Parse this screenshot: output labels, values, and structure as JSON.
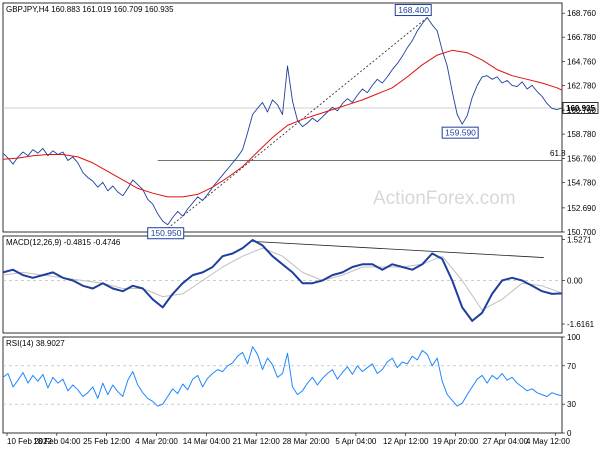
{
  "chart_data": [
    {
      "type": "line",
      "panel": "price",
      "header": "GBPJPY,H4  160.883 161.019 160.709 160.935",
      "last_price": 160.935,
      "last_price_label": "160.935",
      "ylim": [
        150.7,
        169.6
      ],
      "y_ticks": [
        "168.760",
        "166.780",
        "164.760",
        "162.780",
        "160.760",
        "158.780",
        "156.760",
        "154.780",
        "152.690",
        "150.700"
      ],
      "x_ticks": [
        "10 Feb 2022",
        "18 Feb 04:00",
        "25 Feb 12:00",
        "4 Mar 20:00",
        "14 Mar 04:00",
        "21 Mar 12:00",
        "28 Mar 20:00",
        "5 Apr 04:00",
        "12 Apr 12:00",
        "19 Apr 20:00",
        "27 Apr 04:00",
        "4 May 12:00"
      ],
      "watermark": "ActionForex.com",
      "series": [
        {
          "role": "price",
          "color": "#1f3f9f",
          "x": [
            0,
            3,
            6,
            9,
            12,
            15,
            18,
            21,
            24,
            27,
            30,
            33,
            36,
            39,
            42,
            45,
            48,
            51,
            54,
            57,
            60,
            63,
            66,
            69,
            72,
            75,
            78,
            81,
            84,
            87,
            90,
            93,
            96,
            99,
            102,
            105,
            108,
            111,
            114,
            117,
            120,
            123,
            126,
            129,
            132,
            135,
            138,
            141,
            144,
            147,
            150,
            153,
            156,
            159,
            162,
            165,
            168,
            171,
            174,
            177,
            180,
            183,
            186,
            189,
            192,
            195,
            198,
            201,
            204,
            207,
            210,
            213,
            216,
            219,
            222,
            225,
            228,
            231,
            234,
            237,
            240,
            243,
            246,
            249,
            252,
            255,
            258,
            261,
            264,
            267,
            270,
            273,
            276,
            279,
            282,
            285,
            288,
            291,
            294,
            297,
            300,
            303,
            306,
            309,
            312,
            315,
            318,
            321,
            324,
            327,
            330,
            333,
            336
          ],
          "values": [
            157.2,
            156.8,
            156.3,
            156.9,
            157.3,
            157.0,
            157.5,
            157.2,
            157.6,
            157.0,
            157.4,
            157.1,
            157.3,
            156.6,
            156.9,
            156.4,
            155.6,
            155.2,
            154.9,
            154.4,
            154.8,
            154.1,
            154.5,
            154.0,
            153.7,
            154.3,
            155.0,
            154.6,
            154.2,
            153.4,
            153.0,
            152.2,
            151.6,
            151.3,
            151.9,
            152.4,
            152.0,
            152.6,
            153.1,
            153.6,
            153.3,
            153.8,
            154.4,
            154.9,
            155.4,
            155.9,
            156.4,
            156.9,
            157.5,
            158.9,
            160.4,
            160.9,
            161.4,
            160.6,
            161.6,
            161.2,
            160.4,
            164.4,
            161.5,
            159.9,
            159.4,
            159.7,
            160.1,
            159.8,
            160.2,
            160.6,
            161.0,
            160.7,
            161.3,
            161.7,
            161.4,
            162.0,
            162.5,
            162.2,
            162.8,
            163.3,
            163.0,
            163.5,
            164.1,
            164.6,
            165.2,
            165.9,
            166.5,
            167.3,
            167.9,
            168.4,
            167.8,
            167.3,
            165.7,
            164.4,
            162.3,
            160.4,
            159.6,
            160.3,
            161.8,
            162.8,
            163.5,
            163.6,
            163.3,
            163.5,
            163.0,
            163.2,
            162.8,
            162.7,
            163.1,
            162.5,
            162.8,
            162.3,
            161.9,
            161.3,
            160.9,
            160.8,
            160.935
          ]
        },
        {
          "role": "moving average",
          "color": "#dd1111",
          "x": [
            0,
            9,
            18,
            27,
            36,
            45,
            54,
            63,
            72,
            81,
            90,
            99,
            108,
            117,
            126,
            135,
            144,
            153,
            162,
            171,
            180,
            189,
            198,
            207,
            216,
            225,
            234,
            243,
            252,
            261,
            270,
            279,
            288,
            297,
            306,
            315,
            324,
            333,
            336
          ],
          "values": [
            156.7,
            156.8,
            157.0,
            157.1,
            157.1,
            156.9,
            156.4,
            155.7,
            155.0,
            154.3,
            153.9,
            153.6,
            153.6,
            153.8,
            154.4,
            155.2,
            156.1,
            157.3,
            158.5,
            159.5,
            160.0,
            160.4,
            160.8,
            161.2,
            161.6,
            162.1,
            162.6,
            163.5,
            164.5,
            165.3,
            165.7,
            165.5,
            164.9,
            164.1,
            163.6,
            163.3,
            163.0,
            162.6,
            162.4
          ]
        }
      ],
      "annotations": [
        {
          "text": "168.400",
          "x": 255,
          "y": 168.4,
          "position": "above"
        },
        {
          "text": "150.950",
          "x": 99,
          "y": 151.3,
          "position": "below"
        },
        {
          "text": "159.590",
          "x": 276,
          "y": 159.6,
          "position": "below"
        },
        {
          "text": "61.8",
          "x": 336,
          "y": 156.8,
          "position": "right"
        }
      ],
      "horizontal_lines": [
        {
          "y": 160.935,
          "color": "#c0c0c0"
        },
        {
          "y": 156.6,
          "x_from": 93,
          "color": "#444444"
        }
      ],
      "trend_lines": [
        {
          "x": [
            99,
            255
          ],
          "values": [
            151.0,
            168.4
          ],
          "color": "#222222",
          "style": "dotted"
        }
      ]
    },
    {
      "type": "line",
      "panel": "macd",
      "header": "MACD(12,26,9) -0.4815 -0.4746",
      "ylim": [
        -1.95,
        1.65
      ],
      "y_ticks": [
        "1.5271",
        "0.00",
        "-1.6161"
      ],
      "series": [
        {
          "role": "macd",
          "color": "#1f3f9f",
          "x": [
            0,
            6,
            12,
            18,
            24,
            30,
            36,
            42,
            48,
            54,
            60,
            66,
            72,
            78,
            84,
            90,
            96,
            102,
            108,
            114,
            120,
            126,
            132,
            138,
            144,
            150,
            156,
            162,
            168,
            174,
            180,
            186,
            192,
            198,
            204,
            210,
            216,
            222,
            228,
            234,
            240,
            246,
            252,
            258,
            264,
            270,
            276,
            282,
            288,
            294,
            300,
            306,
            312,
            318,
            324,
            330,
            336
          ],
          "values": [
            0.3,
            0.4,
            0.2,
            0.1,
            0.2,
            0.3,
            0.1,
            0.0,
            -0.2,
            -0.3,
            -0.1,
            -0.3,
            -0.4,
            -0.2,
            -0.3,
            -0.7,
            -1.0,
            -0.5,
            -0.1,
            0.2,
            0.3,
            0.5,
            0.9,
            1.0,
            1.2,
            1.5,
            1.3,
            0.9,
            0.6,
            0.3,
            -0.1,
            -0.1,
            0.0,
            0.2,
            0.3,
            0.5,
            0.6,
            0.6,
            0.4,
            0.6,
            0.5,
            0.4,
            0.6,
            1.0,
            0.8,
            0.0,
            -1.0,
            -1.5,
            -1.2,
            -0.5,
            0.0,
            0.1,
            0.0,
            -0.2,
            -0.4,
            -0.5,
            -0.48
          ]
        },
        {
          "role": "signal",
          "color": "#c0c0c0",
          "x": [
            0,
            12,
            24,
            36,
            48,
            60,
            72,
            84,
            96,
            108,
            120,
            132,
            144,
            156,
            168,
            180,
            192,
            204,
            216,
            228,
            240,
            252,
            264,
            276,
            288,
            300,
            312,
            324,
            336
          ],
          "values": [
            0.2,
            0.3,
            0.2,
            0.1,
            0.0,
            -0.1,
            -0.3,
            -0.3,
            -0.6,
            -0.5,
            0.0,
            0.5,
            0.9,
            1.2,
            0.9,
            0.3,
            0.0,
            0.2,
            0.5,
            0.5,
            0.5,
            0.6,
            0.9,
            0.0,
            -1.1,
            -0.7,
            -0.1,
            -0.2,
            -0.47
          ]
        }
      ],
      "trend_lines": [
        {
          "x": [
            150,
            325
          ],
          "values": [
            1.45,
            0.85
          ],
          "color": "#222222",
          "style": "solid"
        }
      ]
    },
    {
      "type": "line",
      "panel": "rsi",
      "header": "RSI(14) 38.9027",
      "ylim": [
        0,
        100
      ],
      "y_ticks": [
        "100",
        "70",
        "30",
        "0"
      ],
      "series": [
        {
          "role": "rsi",
          "color": "#1f88ff",
          "x": [
            0,
            3,
            6,
            9,
            12,
            15,
            18,
            21,
            24,
            27,
            30,
            33,
            36,
            39,
            42,
            45,
            48,
            51,
            54,
            57,
            60,
            63,
            66,
            69,
            72,
            75,
            78,
            81,
            84,
            87,
            90,
            93,
            96,
            99,
            102,
            105,
            108,
            111,
            114,
            117,
            120,
            123,
            126,
            129,
            132,
            135,
            138,
            141,
            144,
            147,
            150,
            153,
            156,
            159,
            162,
            165,
            168,
            171,
            174,
            177,
            180,
            183,
            186,
            189,
            192,
            195,
            198,
            201,
            204,
            207,
            210,
            213,
            216,
            219,
            222,
            225,
            228,
            231,
            234,
            237,
            240,
            243,
            246,
            249,
            252,
            255,
            258,
            261,
            264,
            267,
            270,
            273,
            276,
            279,
            282,
            285,
            288,
            291,
            294,
            297,
            300,
            303,
            306,
            309,
            312,
            315,
            318,
            321,
            324,
            327,
            330,
            333,
            336
          ],
          "values": [
            58,
            62,
            48,
            55,
            63,
            52,
            60,
            54,
            61,
            47,
            58,
            52,
            56,
            44,
            50,
            45,
            38,
            42,
            48,
            36,
            52,
            40,
            50,
            43,
            38,
            55,
            64,
            50,
            42,
            36,
            33,
            28,
            30,
            38,
            46,
            41,
            51,
            45,
            56,
            60,
            48,
            57,
            62,
            66,
            64,
            70,
            73,
            80,
            84,
            72,
            90,
            82,
            66,
            78,
            71,
            58,
            62,
            83,
            48,
            40,
            44,
            52,
            58,
            50,
            57,
            62,
            66,
            56,
            63,
            69,
            61,
            70,
            64,
            68,
            72,
            62,
            66,
            74,
            78,
            68,
            74,
            72,
            80,
            76,
            86,
            82,
            70,
            78,
            54,
            40,
            34,
            28,
            31,
            40,
            48,
            56,
            60,
            52,
            60,
            56,
            62,
            55,
            58,
            52,
            48,
            44,
            46,
            42,
            40,
            38,
            42,
            40,
            38.9
          ]
        }
      ]
    }
  ]
}
